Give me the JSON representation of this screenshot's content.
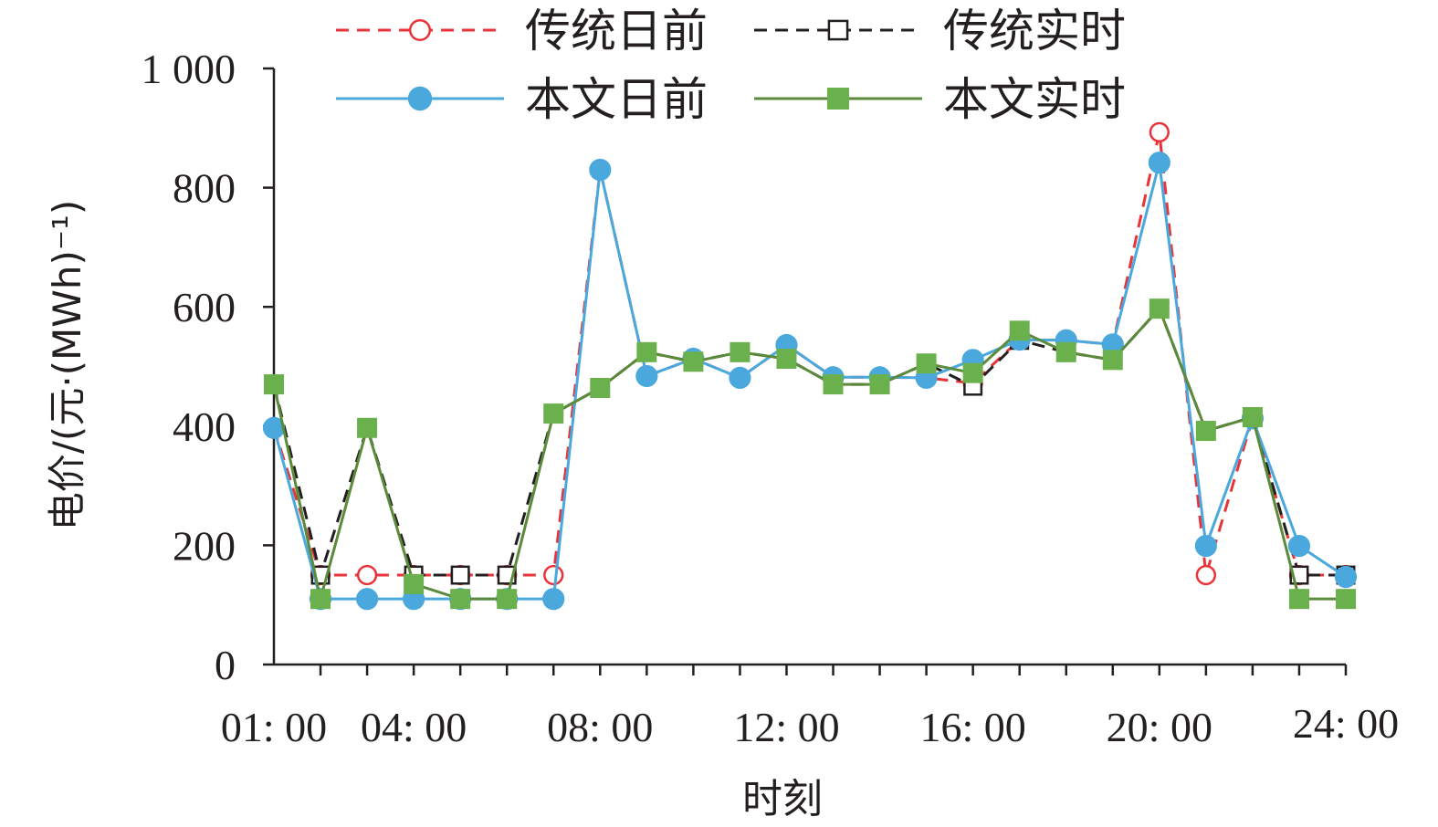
{
  "chart_data": {
    "type": "line",
    "title": "",
    "xlabel": "时刻",
    "ylabel": "电价/(元·(MWh)⁻¹)",
    "ylim": [
      0,
      1000
    ],
    "yticks": [
      "0",
      "200",
      "400",
      "600",
      "800",
      "1 000"
    ],
    "ytick_values": [
      0,
      200,
      400,
      600,
      800,
      1000
    ],
    "x": [
      1,
      2,
      3,
      4,
      5,
      6,
      7,
      8,
      9,
      10,
      11,
      12,
      13,
      14,
      15,
      16,
      17,
      18,
      19,
      20,
      21,
      22,
      23,
      24
    ],
    "xtick_labels": [
      {
        "x": 1,
        "label": "01: 00"
      },
      {
        "x": 4,
        "label": "04: 00"
      },
      {
        "x": 8,
        "label": "08: 00"
      },
      {
        "x": 12,
        "label": "12: 00"
      },
      {
        "x": 16,
        "label": "16: 00"
      },
      {
        "x": 20,
        "label": "20: 00"
      },
      {
        "x": 24,
        "label": "24: 00"
      }
    ],
    "grid": false,
    "legend_position": "top",
    "series": [
      {
        "name": "传统日前",
        "color": "#e8333a",
        "style": "dashed",
        "marker": "open-circle",
        "values": [
          397,
          150,
          150,
          150,
          150,
          150,
          150,
          830,
          484,
          513,
          481,
          536,
          482,
          482,
          481,
          472,
          545,
          544,
          537,
          893,
          150,
          413,
          150,
          150
        ]
      },
      {
        "name": "传统实时",
        "color": "#231f20",
        "style": "dashed",
        "marker": "open-square",
        "values": [
          470,
          150,
          397,
          150,
          150,
          150,
          421,
          464,
          524,
          508,
          524,
          513,
          470,
          470,
          505,
          467,
          544,
          524,
          511,
          597,
          392,
          415,
          150,
          150
        ]
      },
      {
        "name": "本文日前",
        "color": "#4aa8dd",
        "style": "solid",
        "marker": "filled-circle",
        "values": [
          397,
          110,
          110,
          110,
          110,
          110,
          110,
          830,
          484,
          513,
          481,
          536,
          482,
          482,
          481,
          511,
          545,
          544,
          537,
          842,
          199,
          413,
          199,
          147
        ]
      },
      {
        "name": "本文实时",
        "color": "#5a8a3a",
        "markerColor": "#6ab04c",
        "style": "solid",
        "marker": "filled-square",
        "values": [
          470,
          110,
          397,
          135,
          110,
          110,
          421,
          464,
          524,
          508,
          524,
          513,
          470,
          470,
          505,
          489,
          560,
          524,
          511,
          597,
          392,
          415,
          110,
          110
        ]
      }
    ]
  }
}
